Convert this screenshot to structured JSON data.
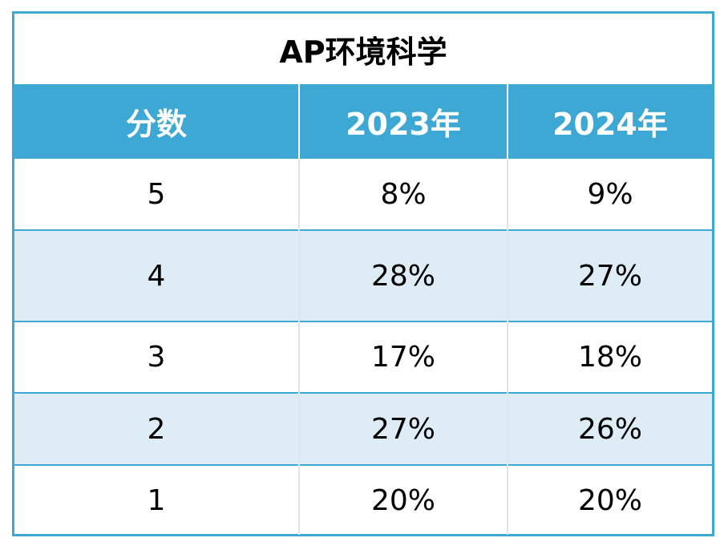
{
  "title": "AP环境科学",
  "headers": [
    "分数",
    "2023年",
    "2024年"
  ],
  "rows": [
    {
      "score": "5",
      "y2023": "8%",
      "y2024": "9%"
    },
    {
      "score": "4",
      "y2023": "28%",
      "y2024": "27%"
    },
    {
      "score": "3",
      "y2023": "17%",
      "y2024": "18%"
    },
    {
      "score": "2",
      "y2023": "27%",
      "y2024": "26%"
    },
    {
      "score": "1",
      "y2023": "20%",
      "y2024": "20%"
    }
  ],
  "colors": {
    "header_bg": "#3ea8d4",
    "stripe_bg": "#deedf5",
    "border": "#3ea8d4"
  }
}
